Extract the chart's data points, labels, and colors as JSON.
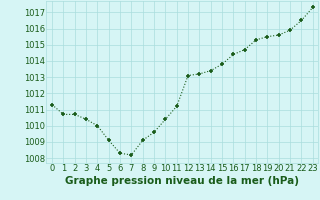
{
  "x": [
    0,
    1,
    2,
    3,
    4,
    5,
    6,
    7,
    8,
    9,
    10,
    11,
    12,
    13,
    14,
    15,
    16,
    17,
    18,
    19,
    20,
    21,
    22,
    23
  ],
  "y": [
    1011.3,
    1010.7,
    1010.7,
    1010.4,
    1010.0,
    1009.1,
    1008.3,
    1008.2,
    1009.1,
    1009.6,
    1010.4,
    1011.2,
    1013.1,
    1013.2,
    1013.4,
    1013.8,
    1014.4,
    1014.7,
    1015.3,
    1015.5,
    1015.6,
    1015.9,
    1016.5,
    1017.3
  ],
  "line_color": "#1a5c1a",
  "marker": "+",
  "marker_size": 3.5,
  "marker_linewidth": 1.2,
  "line_width": 0.8,
  "line_style": "dotted",
  "bg_color": "#d6f5f5",
  "grid_color": "#aadddd",
  "xlabel": "Graphe pression niveau de la mer (hPa)",
  "xlabel_fontsize": 7.5,
  "xlabel_color": "#1a5c1a",
  "ytick_labels": [
    1008,
    1009,
    1010,
    1011,
    1012,
    1013,
    1014,
    1015,
    1016,
    1017
  ],
  "xtick_labels": [
    0,
    1,
    2,
    3,
    4,
    5,
    6,
    7,
    8,
    9,
    10,
    11,
    12,
    13,
    14,
    15,
    16,
    17,
    18,
    19,
    20,
    21,
    22,
    23
  ],
  "ylim": [
    1007.7,
    1017.7
  ],
  "xlim": [
    -0.5,
    23.5
  ],
  "tick_fontsize": 6.0,
  "tick_color": "#1a5c1a",
  "spine_color": "#888888"
}
